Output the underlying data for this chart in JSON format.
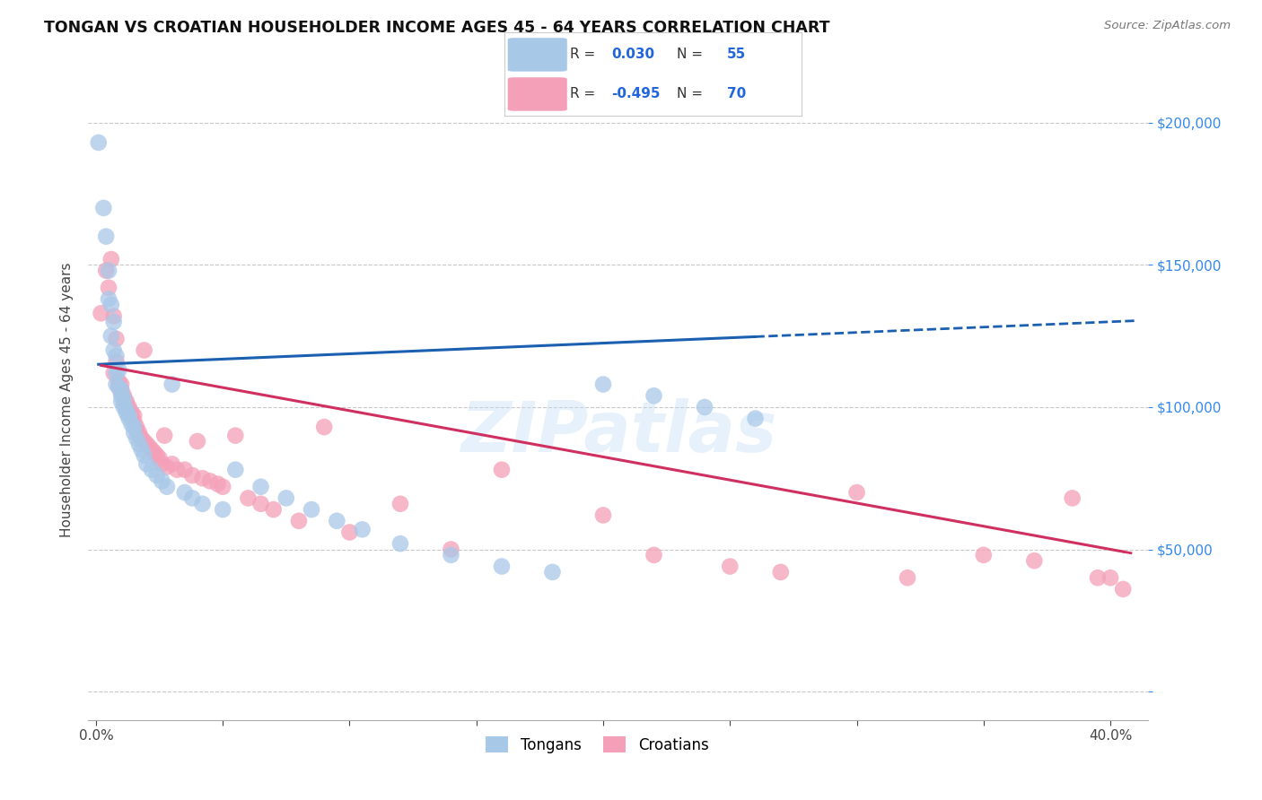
{
  "title": "TONGAN VS CROATIAN HOUSEHOLDER INCOME AGES 45 - 64 YEARS CORRELATION CHART",
  "source": "Source: ZipAtlas.com",
  "ylabel": "Householder Income Ages 45 - 64 years",
  "x_ticks": [
    0.0,
    0.05,
    0.1,
    0.15,
    0.2,
    0.25,
    0.3,
    0.35,
    0.4
  ],
  "y_ticks": [
    0,
    50000,
    100000,
    150000,
    200000
  ],
  "xlim": [
    -0.003,
    0.415
  ],
  "ylim": [
    -10000,
    215000
  ],
  "legend_r_tongan": "0.030",
  "legend_n_tongan": "55",
  "legend_r_croatian": "-0.495",
  "legend_n_croatian": "70",
  "tongan_color": "#a8c8e8",
  "croatian_color": "#f4a0b8",
  "tongan_line_color": "#1a5fb0",
  "croatian_line_color": "#d03060",
  "watermark": "ZIPatlas",
  "background_color": "#ffffff",
  "grid_color": "#c8c8c8",
  "tongans_x": [
    0.001,
    0.003,
    0.004,
    0.005,
    0.005,
    0.006,
    0.006,
    0.007,
    0.007,
    0.008,
    0.008,
    0.008,
    0.009,
    0.009,
    0.01,
    0.01,
    0.01,
    0.011,
    0.011,
    0.011,
    0.012,
    0.012,
    0.013,
    0.013,
    0.014,
    0.015,
    0.015,
    0.016,
    0.017,
    0.018,
    0.019,
    0.02,
    0.022,
    0.024,
    0.026,
    0.028,
    0.03,
    0.035,
    0.038,
    0.042,
    0.05,
    0.055,
    0.065,
    0.075,
    0.085,
    0.095,
    0.105,
    0.12,
    0.14,
    0.16,
    0.18,
    0.2,
    0.22,
    0.24,
    0.26
  ],
  "tongans_y": [
    193000,
    170000,
    160000,
    148000,
    138000,
    136000,
    125000,
    130000,
    120000,
    118000,
    112000,
    108000,
    113000,
    107000,
    106000,
    104000,
    102000,
    103000,
    101000,
    100000,
    99000,
    98000,
    97000,
    96000,
    94000,
    93000,
    91000,
    89000,
    87000,
    85000,
    83000,
    80000,
    78000,
    76000,
    74000,
    72000,
    108000,
    70000,
    68000,
    66000,
    64000,
    78000,
    72000,
    68000,
    64000,
    60000,
    57000,
    52000,
    48000,
    44000,
    42000,
    108000,
    104000,
    100000,
    96000
  ],
  "croatians_x": [
    0.002,
    0.004,
    0.005,
    0.006,
    0.007,
    0.007,
    0.008,
    0.008,
    0.009,
    0.009,
    0.01,
    0.01,
    0.01,
    0.011,
    0.011,
    0.012,
    0.012,
    0.013,
    0.013,
    0.014,
    0.014,
    0.015,
    0.015,
    0.016,
    0.016,
    0.017,
    0.017,
    0.018,
    0.019,
    0.019,
    0.02,
    0.021,
    0.022,
    0.023,
    0.024,
    0.025,
    0.026,
    0.027,
    0.028,
    0.03,
    0.032,
    0.035,
    0.038,
    0.04,
    0.042,
    0.045,
    0.048,
    0.05,
    0.055,
    0.06,
    0.065,
    0.07,
    0.08,
    0.09,
    0.1,
    0.12,
    0.14,
    0.16,
    0.2,
    0.22,
    0.25,
    0.27,
    0.3,
    0.32,
    0.35,
    0.37,
    0.385,
    0.395,
    0.4,
    0.405
  ],
  "croatians_y": [
    133000,
    148000,
    142000,
    152000,
    132000,
    112000,
    124000,
    116000,
    109000,
    107000,
    108000,
    106000,
    105000,
    104000,
    103000,
    102000,
    101000,
    100000,
    99000,
    98000,
    97000,
    97000,
    95000,
    93000,
    92000,
    91000,
    90000,
    89000,
    120000,
    88000,
    87000,
    86000,
    85000,
    84000,
    83000,
    82000,
    80000,
    90000,
    79000,
    80000,
    78000,
    78000,
    76000,
    88000,
    75000,
    74000,
    73000,
    72000,
    90000,
    68000,
    66000,
    64000,
    60000,
    93000,
    56000,
    66000,
    50000,
    78000,
    62000,
    48000,
    44000,
    42000,
    70000,
    40000,
    48000,
    46000,
    68000,
    40000,
    40000,
    36000
  ]
}
